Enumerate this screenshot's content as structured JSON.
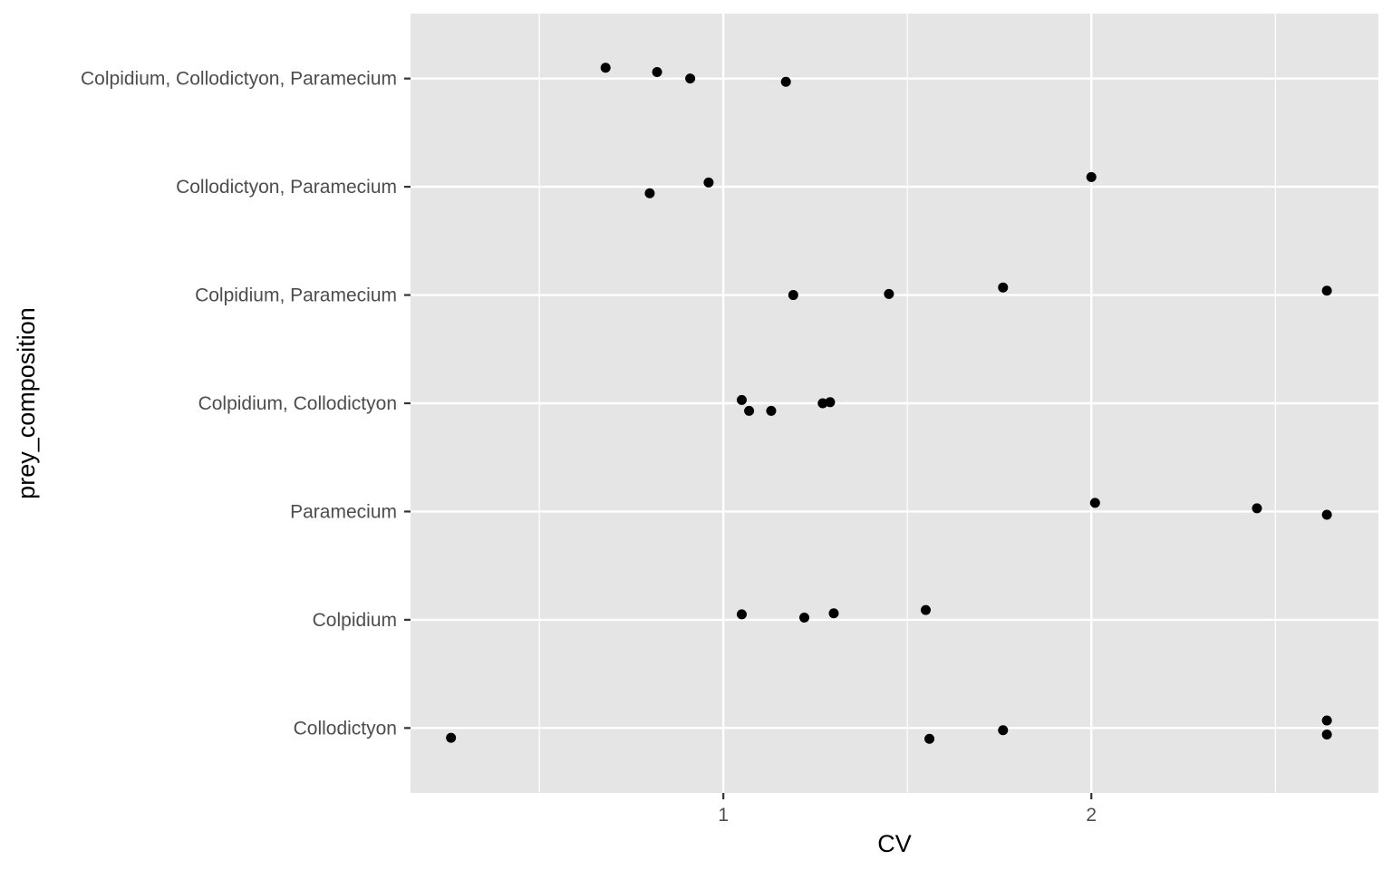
{
  "chart_data": {
    "type": "scatter",
    "title": "",
    "xlabel": "CV",
    "ylabel": "prey_composition",
    "xlim": [
      0.15,
      2.78
    ],
    "x_ticks": [
      1,
      2
    ],
    "x_tick_labels": [
      "1",
      "2"
    ],
    "x_minor_gridlines": [
      0.5,
      1.5,
      2.5
    ],
    "grid": true,
    "colors": {
      "panel": "#e5e5e5",
      "grid": "#ffffff",
      "point": "#000000",
      "axis_text": "#4d4d4d"
    },
    "categories": [
      "Collodictyon",
      "Colpidium",
      "Paramecium",
      "Colpidium, Collodictyon",
      "Colpidium, Paramecium",
      "Collodictyon, Paramecium",
      "Colpidium, Collodictyon, Paramecium"
    ],
    "points": [
      {
        "category": "Colpidium, Collodictyon, Paramecium",
        "x": 0.68,
        "jitter": 0.1
      },
      {
        "category": "Colpidium, Collodictyon, Paramecium",
        "x": 0.82,
        "jitter": 0.06
      },
      {
        "category": "Colpidium, Collodictyon, Paramecium",
        "x": 0.91,
        "jitter": 0.0
      },
      {
        "category": "Colpidium, Collodictyon, Paramecium",
        "x": 1.17,
        "jitter": -0.03
      },
      {
        "category": "Collodictyon, Paramecium",
        "x": 0.8,
        "jitter": -0.06
      },
      {
        "category": "Collodictyon, Paramecium",
        "x": 0.96,
        "jitter": 0.04
      },
      {
        "category": "Collodictyon, Paramecium",
        "x": 2.0,
        "jitter": 0.09
      },
      {
        "category": "Colpidium, Paramecium",
        "x": 1.19,
        "jitter": 0.0
      },
      {
        "category": "Colpidium, Paramecium",
        "x": 1.45,
        "jitter": 0.01
      },
      {
        "category": "Colpidium, Paramecium",
        "x": 1.76,
        "jitter": 0.07
      },
      {
        "category": "Colpidium, Paramecium",
        "x": 2.64,
        "jitter": 0.04
      },
      {
        "category": "Colpidium, Collodictyon",
        "x": 1.05,
        "jitter": 0.03
      },
      {
        "category": "Colpidium, Collodictyon",
        "x": 1.07,
        "jitter": -0.07
      },
      {
        "category": "Colpidium, Collodictyon",
        "x": 1.13,
        "jitter": -0.07
      },
      {
        "category": "Colpidium, Collodictyon",
        "x": 1.27,
        "jitter": 0.0
      },
      {
        "category": "Colpidium, Collodictyon",
        "x": 1.29,
        "jitter": 0.01
      },
      {
        "category": "Paramecium",
        "x": 2.01,
        "jitter": 0.08
      },
      {
        "category": "Paramecium",
        "x": 2.45,
        "jitter": 0.03
      },
      {
        "category": "Paramecium",
        "x": 2.64,
        "jitter": -0.03
      },
      {
        "category": "Colpidium",
        "x": 1.05,
        "jitter": 0.05
      },
      {
        "category": "Colpidium",
        "x": 1.22,
        "jitter": 0.02
      },
      {
        "category": "Colpidium",
        "x": 1.3,
        "jitter": 0.06
      },
      {
        "category": "Colpidium",
        "x": 1.55,
        "jitter": 0.09
      },
      {
        "category": "Collodictyon",
        "x": 0.26,
        "jitter": -0.09
      },
      {
        "category": "Collodictyon",
        "x": 1.56,
        "jitter": -0.1
      },
      {
        "category": "Collodictyon",
        "x": 1.76,
        "jitter": -0.02
      },
      {
        "category": "Collodictyon",
        "x": 2.64,
        "jitter": 0.07
      },
      {
        "category": "Collodictyon",
        "x": 2.64,
        "jitter": -0.06
      }
    ]
  }
}
